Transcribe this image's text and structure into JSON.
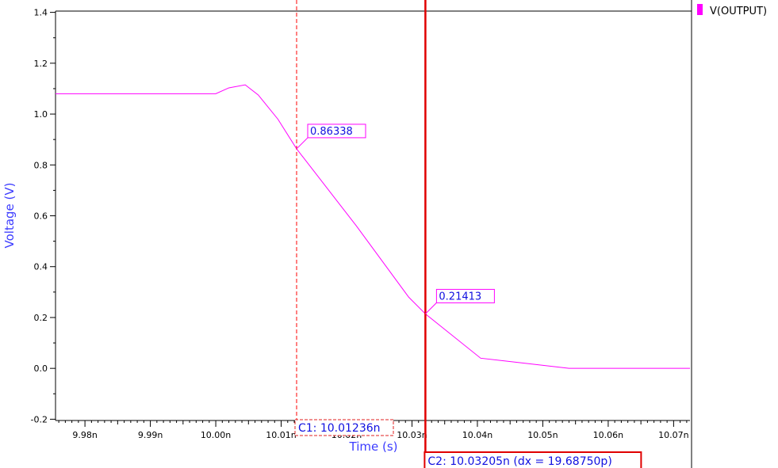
{
  "chart_data": {
    "type": "line",
    "xlabel": "Time (s)",
    "ylabel": "Voltage (V)",
    "xlim": [
      9.9755,
      10.0725
    ],
    "ylim": [
      -0.205,
      1.405
    ],
    "x_ticks": [
      9.98,
      9.99,
      10.0,
      10.01,
      10.02,
      10.03,
      10.04,
      10.05,
      10.06,
      10.07
    ],
    "x_tick_labels": [
      "9.98n",
      "9.99n",
      "10.00n",
      "10.01n",
      "10.02n",
      "10.03n",
      "10.04n",
      "10.05n",
      "10.06n",
      "10.07n"
    ],
    "y_ticks": [
      -0.2,
      0.0,
      0.2,
      0.4,
      0.6,
      0.8,
      1.0,
      1.2,
      1.4
    ],
    "y_tick_labels": [
      "-0.2",
      "0.0",
      "0.2",
      "0.4",
      "0.6",
      "0.8",
      "1.0",
      "1.2",
      "1.4"
    ],
    "legend_position": "top-right",
    "series": [
      {
        "name": "V(OUTPUT)",
        "color": "#ff00ff",
        "x": [
          9.9755,
          10.0,
          10.002,
          10.0045,
          10.0065,
          10.0095,
          10.01236,
          10.0215,
          10.0295,
          10.03205,
          10.0405,
          10.054,
          10.0725
        ],
        "y": [
          1.08,
          1.08,
          1.103,
          1.115,
          1.075,
          0.98,
          0.86338,
          0.56,
          0.28,
          0.21413,
          0.04,
          0.0,
          0.0
        ]
      }
    ],
    "markers": [
      {
        "x": 10.01236,
        "y": 0.86338,
        "label": "0.86338"
      },
      {
        "x": 10.03205,
        "y": 0.21413,
        "label": "0.21413"
      }
    ],
    "cursors": [
      {
        "id": "C1",
        "x": 10.01236,
        "label": "C1: 10.01236n",
        "style": "dashed",
        "color": "#ff0000"
      },
      {
        "id": "C2",
        "x": 10.03205,
        "label": "C2: 10.03205n (dx = 19.68750p)",
        "style": "solid",
        "color": "#e00000"
      }
    ],
    "colors": {
      "axis_title": "#3c3cff",
      "label_text": "#1010e0",
      "frame": "#000000"
    }
  }
}
